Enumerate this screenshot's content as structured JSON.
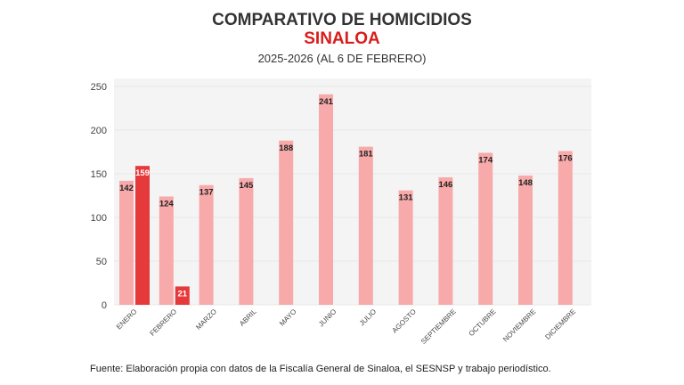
{
  "chart_data": {
    "type": "bar",
    "title": "COMPARATIVO DE HOMICIDIOS",
    "subtitle": "SINALOA",
    "subtitle2": "2025-2026 (AL 6 DE FEBRERO)",
    "categories": [
      "ENERO",
      "FEBRERO",
      "MARZO",
      "ABRIL",
      "MAYO",
      "JUNIO",
      "JULIO",
      "AGOSTO",
      "SEPTIEMBRE",
      "OCTUBRE",
      "NOVIEMBRE",
      "DICIEMBRE"
    ],
    "series": [
      {
        "values": [
          142,
          124,
          137,
          145,
          188,
          241,
          181,
          131,
          146,
          174,
          148,
          176
        ],
        "color": "#f8a9a9"
      },
      {
        "values": [
          159,
          21,
          null,
          null,
          null,
          null,
          null,
          null,
          null,
          null,
          null,
          null
        ],
        "color": "#e5393b"
      }
    ],
    "ylim": [
      0,
      250
    ],
    "yticks": [
      0,
      50,
      100,
      150,
      200,
      250
    ],
    "grid": true,
    "legend": "none",
    "source": "Fuente: Elaboración propia con datos de la Fiscalía General de Sinaloa, el SESNSP y trabajo periodístico."
  }
}
